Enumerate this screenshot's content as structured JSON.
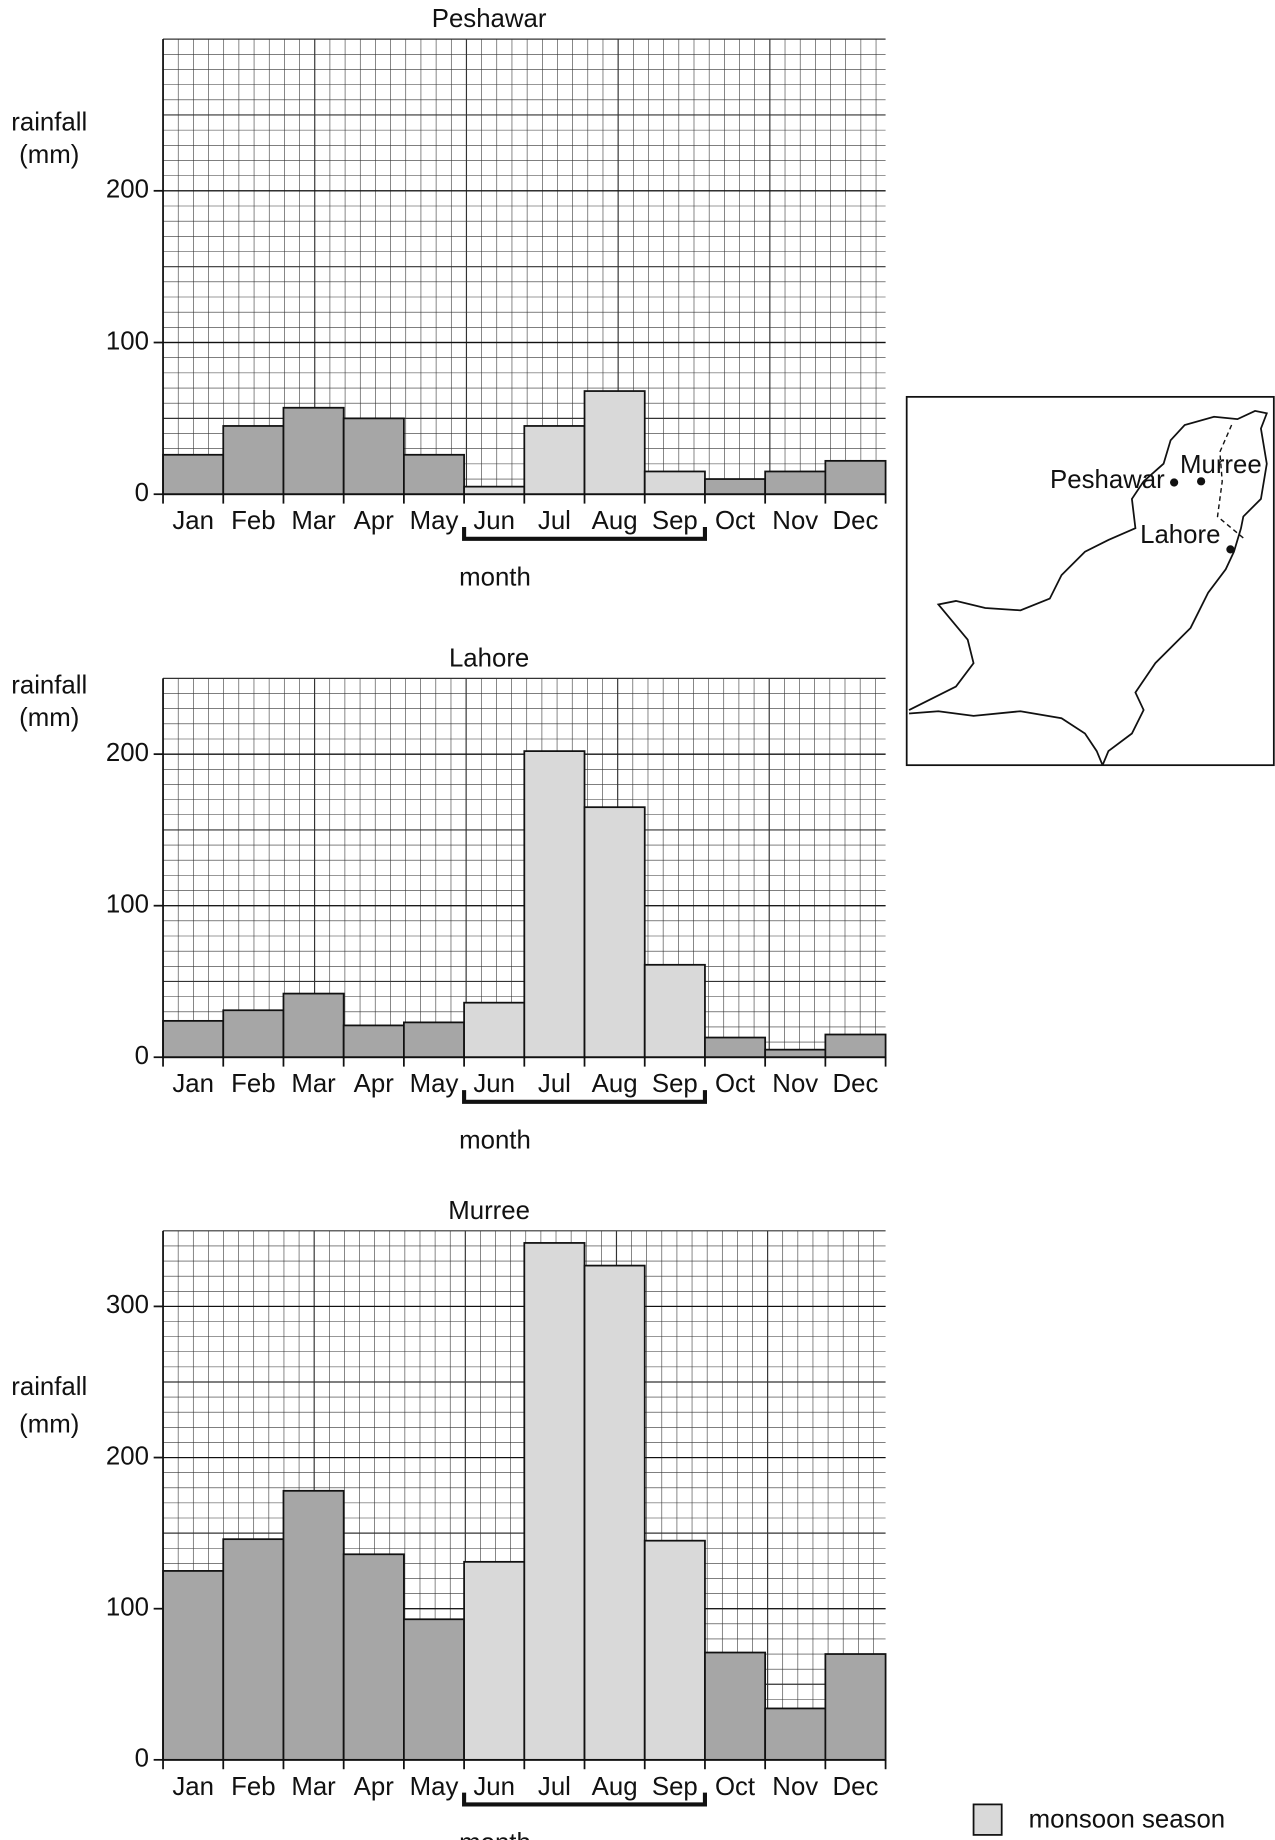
{
  "charts": [
    {
      "type": "bar",
      "title": "Peshawar",
      "ylabel": [
        "rainfall",
        "(mm)"
      ],
      "xlabel": "month",
      "categories": [
        "Jan",
        "Feb",
        "Mar",
        "Apr",
        "May",
        "Jun",
        "Jul",
        "Aug",
        "Sep",
        "Oct",
        "Nov",
        "Dec"
      ],
      "values": [
        26,
        45,
        57,
        50,
        26,
        5,
        45,
        68,
        15,
        10,
        15,
        22
      ],
      "colors": [
        "#a6a6a6",
        "#a6a6a6",
        "#a6a6a6",
        "#a6a6a6",
        "#a6a6a6",
        "#d9d9d9",
        "#d9d9d9",
        "#d9d9d9",
        "#d9d9d9",
        "#a6a6a6",
        "#a6a6a6",
        "#a6a6a6"
      ],
      "ylim": [
        0,
        300
      ],
      "yticks": [
        0,
        100,
        200
      ],
      "grid": true
    },
    {
      "type": "bar",
      "title": "Lahore",
      "ylabel": [
        "rainfall",
        "(mm)"
      ],
      "xlabel": "month",
      "categories": [
        "Jan",
        "Feb",
        "Mar",
        "Apr",
        "May",
        "Jun",
        "Jul",
        "Aug",
        "Sep",
        "Oct",
        "Nov",
        "Dec"
      ],
      "values": [
        24,
        31,
        42,
        21,
        23,
        36,
        202,
        165,
        61,
        13,
        5,
        15
      ],
      "colors": [
        "#a6a6a6",
        "#a6a6a6",
        "#a6a6a6",
        "#a6a6a6",
        "#a6a6a6",
        "#d9d9d9",
        "#d9d9d9",
        "#d9d9d9",
        "#d9d9d9",
        "#a6a6a6",
        "#a6a6a6",
        "#a6a6a6"
      ],
      "ylim": [
        0,
        250
      ],
      "yticks": [
        0,
        100,
        200
      ],
      "grid": true
    },
    {
      "type": "bar",
      "title": "Murree",
      "ylabel": [
        "rainfall",
        "(mm)"
      ],
      "xlabel": "month",
      "categories": [
        "Jan",
        "Feb",
        "Mar",
        "Apr",
        "May",
        "Jun",
        "Jul",
        "Aug",
        "Sep",
        "Oct",
        "Nov",
        "Dec"
      ],
      "values": [
        125,
        146,
        178,
        136,
        93,
        131,
        342,
        327,
        145,
        71,
        34,
        70
      ],
      "colors": [
        "#a6a6a6",
        "#a6a6a6",
        "#a6a6a6",
        "#a6a6a6",
        "#a6a6a6",
        "#d9d9d9",
        "#d9d9d9",
        "#d9d9d9",
        "#d9d9d9",
        "#a6a6a6",
        "#a6a6a6",
        "#a6a6a6"
      ],
      "ylim": [
        0,
        350
      ],
      "yticks": [
        0,
        100,
        200,
        300
      ],
      "grid": true
    }
  ],
  "map": {
    "labels": [
      "Peshawar",
      "Murree",
      "Lahore"
    ]
  },
  "legend": {
    "label": "monsoon season",
    "color": "#d9d9d9"
  }
}
